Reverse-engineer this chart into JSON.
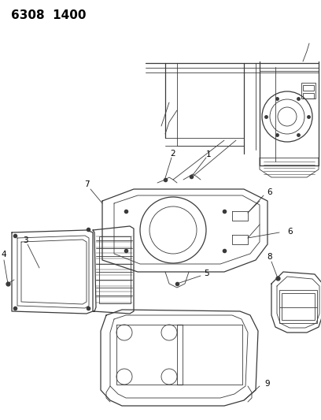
{
  "title": "6308  1400",
  "bg_color": "#ffffff",
  "line_color": "#3a3a3a",
  "label_color": "#000000",
  "label_fontsize": 7.5,
  "title_fontsize": 11,
  "figsize": [
    4.08,
    5.33
  ],
  "dpi": 100
}
